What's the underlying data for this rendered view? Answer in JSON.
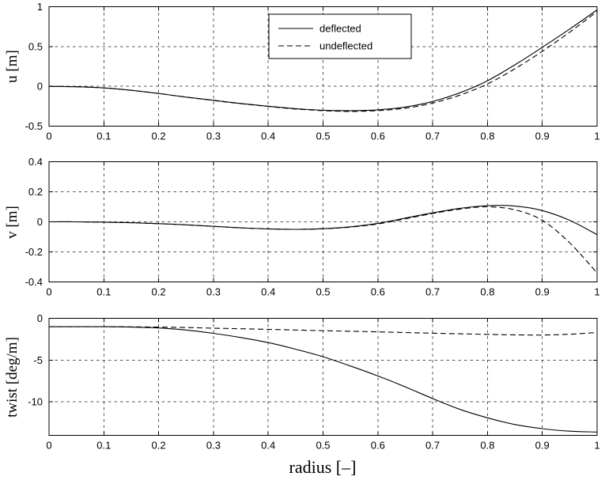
{
  "figure": {
    "background": "#ffffff",
    "axis_color": "#000000",
    "grid_color": "#555555",
    "line_color": "#000000",
    "grid": true,
    "xlabel": "radius [–]",
    "xlim": [
      0,
      1
    ],
    "x_ticks": [
      0,
      0.1,
      0.2,
      0.3,
      0.4,
      0.5,
      0.6,
      0.7,
      0.8,
      0.9,
      1
    ],
    "x_tick_labels": [
      "0",
      "0.1",
      "0.2",
      "0.3",
      "0.4",
      "0.5",
      "0.6",
      "0.7",
      "0.8",
      "0.9",
      "1"
    ]
  },
  "legend": {
    "position": "top-center",
    "entries": [
      {
        "label": "deflected",
        "style": "solid"
      },
      {
        "label": "undeflected",
        "style": "dashed"
      }
    ]
  },
  "chart_data": [
    {
      "type": "line",
      "ylabel": "u [m]",
      "ylim": [
        -0.5,
        1
      ],
      "yticks": [
        1,
        0.5,
        0,
        -0.5
      ],
      "ytick_labels": [
        "1",
        "0.5",
        "0",
        "-0.5"
      ],
      "x": [
        0,
        0.05,
        0.1,
        0.15,
        0.2,
        0.25,
        0.3,
        0.35,
        0.4,
        0.45,
        0.5,
        0.55,
        0.6,
        0.65,
        0.7,
        0.75,
        0.8,
        0.85,
        0.9,
        0.95,
        1
      ],
      "series": [
        {
          "name": "deflected",
          "style": "solid",
          "values": [
            0,
            -0.005,
            -0.02,
            -0.05,
            -0.09,
            -0.135,
            -0.175,
            -0.215,
            -0.25,
            -0.28,
            -0.3,
            -0.305,
            -0.295,
            -0.26,
            -0.19,
            -0.08,
            0.07,
            0.27,
            0.49,
            0.72,
            0.96
          ]
        },
        {
          "name": "undeflected",
          "style": "dashed",
          "values": [
            0,
            -0.005,
            -0.02,
            -0.05,
            -0.09,
            -0.135,
            -0.178,
            -0.218,
            -0.253,
            -0.285,
            -0.305,
            -0.315,
            -0.305,
            -0.275,
            -0.21,
            -0.11,
            0.03,
            0.22,
            0.44,
            0.68,
            0.94
          ]
        }
      ]
    },
    {
      "type": "line",
      "ylabel": "v [m]",
      "ylim": [
        -0.4,
        0.4
      ],
      "yticks": [
        0.4,
        0.2,
        0,
        -0.2,
        -0.4
      ],
      "ytick_labels": [
        "0.4",
        "0.2",
        "0",
        "-0.2",
        "-0.4"
      ],
      "x": [
        0,
        0.05,
        0.1,
        0.15,
        0.2,
        0.25,
        0.3,
        0.35,
        0.4,
        0.45,
        0.5,
        0.55,
        0.6,
        0.65,
        0.7,
        0.75,
        0.8,
        0.85,
        0.9,
        0.95,
        1
      ],
      "series": [
        {
          "name": "deflected",
          "style": "solid",
          "values": [
            0,
            0,
            -0.002,
            -0.006,
            -0.012,
            -0.02,
            -0.03,
            -0.04,
            -0.047,
            -0.05,
            -0.046,
            -0.033,
            -0.01,
            0.025,
            0.06,
            0.09,
            0.108,
            0.105,
            0.075,
            0.01,
            -0.085
          ]
        },
        {
          "name": "undeflected",
          "style": "dashed",
          "values": [
            0,
            0,
            -0.002,
            -0.006,
            -0.012,
            -0.02,
            -0.03,
            -0.04,
            -0.047,
            -0.05,
            -0.046,
            -0.035,
            -0.014,
            0.02,
            0.055,
            0.085,
            0.1,
            0.08,
            0.01,
            -0.14,
            -0.34
          ]
        }
      ]
    },
    {
      "type": "line",
      "ylabel": "twist [deg/m]",
      "ylim": [
        -14,
        0
      ],
      "yticks": [
        0,
        -5,
        -10
      ],
      "ytick_labels": [
        "0",
        "-5",
        "-10"
      ],
      "x": [
        0,
        0.05,
        0.1,
        0.15,
        0.2,
        0.25,
        0.3,
        0.35,
        0.4,
        0.45,
        0.5,
        0.55,
        0.6,
        0.65,
        0.7,
        0.75,
        0.8,
        0.85,
        0.9,
        0.95,
        1
      ],
      "series": [
        {
          "name": "deflected",
          "style": "solid",
          "values": [
            -1.0,
            -1.0,
            -1.0,
            -1.05,
            -1.15,
            -1.4,
            -1.8,
            -2.3,
            -2.9,
            -3.7,
            -4.6,
            -5.7,
            -6.9,
            -8.2,
            -9.6,
            -10.9,
            -11.9,
            -12.7,
            -13.2,
            -13.5,
            -13.6
          ]
        },
        {
          "name": "undeflected",
          "style": "dashed",
          "values": [
            -1.0,
            -1.0,
            -1.0,
            -1.02,
            -1.05,
            -1.1,
            -1.18,
            -1.25,
            -1.32,
            -1.4,
            -1.48,
            -1.55,
            -1.62,
            -1.7,
            -1.78,
            -1.85,
            -1.92,
            -1.98,
            -2.0,
            -1.9,
            -1.7
          ]
        }
      ]
    }
  ]
}
